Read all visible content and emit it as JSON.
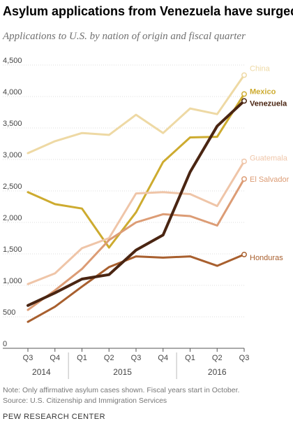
{
  "chart_data": {
    "type": "line",
    "title": "Asylum applications from Venezuela have surged",
    "subtitle": "Applications to U.S. by nation of origin and fiscal quarter",
    "x": [
      "Q3",
      "Q4",
      "Q1",
      "Q2",
      "Q3",
      "Q4",
      "Q1",
      "Q2",
      "Q3"
    ],
    "year_labels": [
      "2014",
      "2015",
      "2016"
    ],
    "y_ticks": [
      "0",
      "500",
      "1,000",
      "1,500",
      "2,000",
      "2,500",
      "3,000",
      "3,500",
      "4,000",
      "4,500"
    ],
    "ylim": [
      0,
      4500
    ],
    "grid": true,
    "series": [
      {
        "name": "China",
        "color": "#eed9a4",
        "values": [
          3100,
          3290,
          3420,
          3390,
          3710,
          3420,
          3810,
          3720,
          4340
        ]
      },
      {
        "name": "Mexico",
        "color": "#cdab2f",
        "values": [
          2480,
          2290,
          2220,
          1600,
          2160,
          2960,
          3350,
          3360,
          4040
        ]
      },
      {
        "name": "Guatemala",
        "color": "#efc5a8",
        "values": [
          1020,
          1190,
          1590,
          1750,
          2460,
          2480,
          2450,
          2260,
          2970
        ]
      },
      {
        "name": "El Salvador",
        "color": "#dc9c75",
        "values": [
          610,
          920,
          1260,
          1720,
          2000,
          2130,
          2100,
          1950,
          2690
        ]
      },
      {
        "name": "Honduras",
        "color": "#a85f2e",
        "values": [
          420,
          660,
          980,
          1290,
          1460,
          1440,
          1460,
          1310,
          1490
        ]
      },
      {
        "name": "Venezuela",
        "color": "#4a2512",
        "values": [
          680,
          880,
          1100,
          1170,
          1560,
          1800,
          2800,
          3530,
          3930
        ]
      }
    ]
  },
  "notes": {
    "line1": "Note: Only affirmative asylum cases shown. Fiscal years start in October.",
    "line2": "Source: U.S. Citizenship and Immigration Services"
  },
  "org": "PEW RESEARCH CENTER"
}
